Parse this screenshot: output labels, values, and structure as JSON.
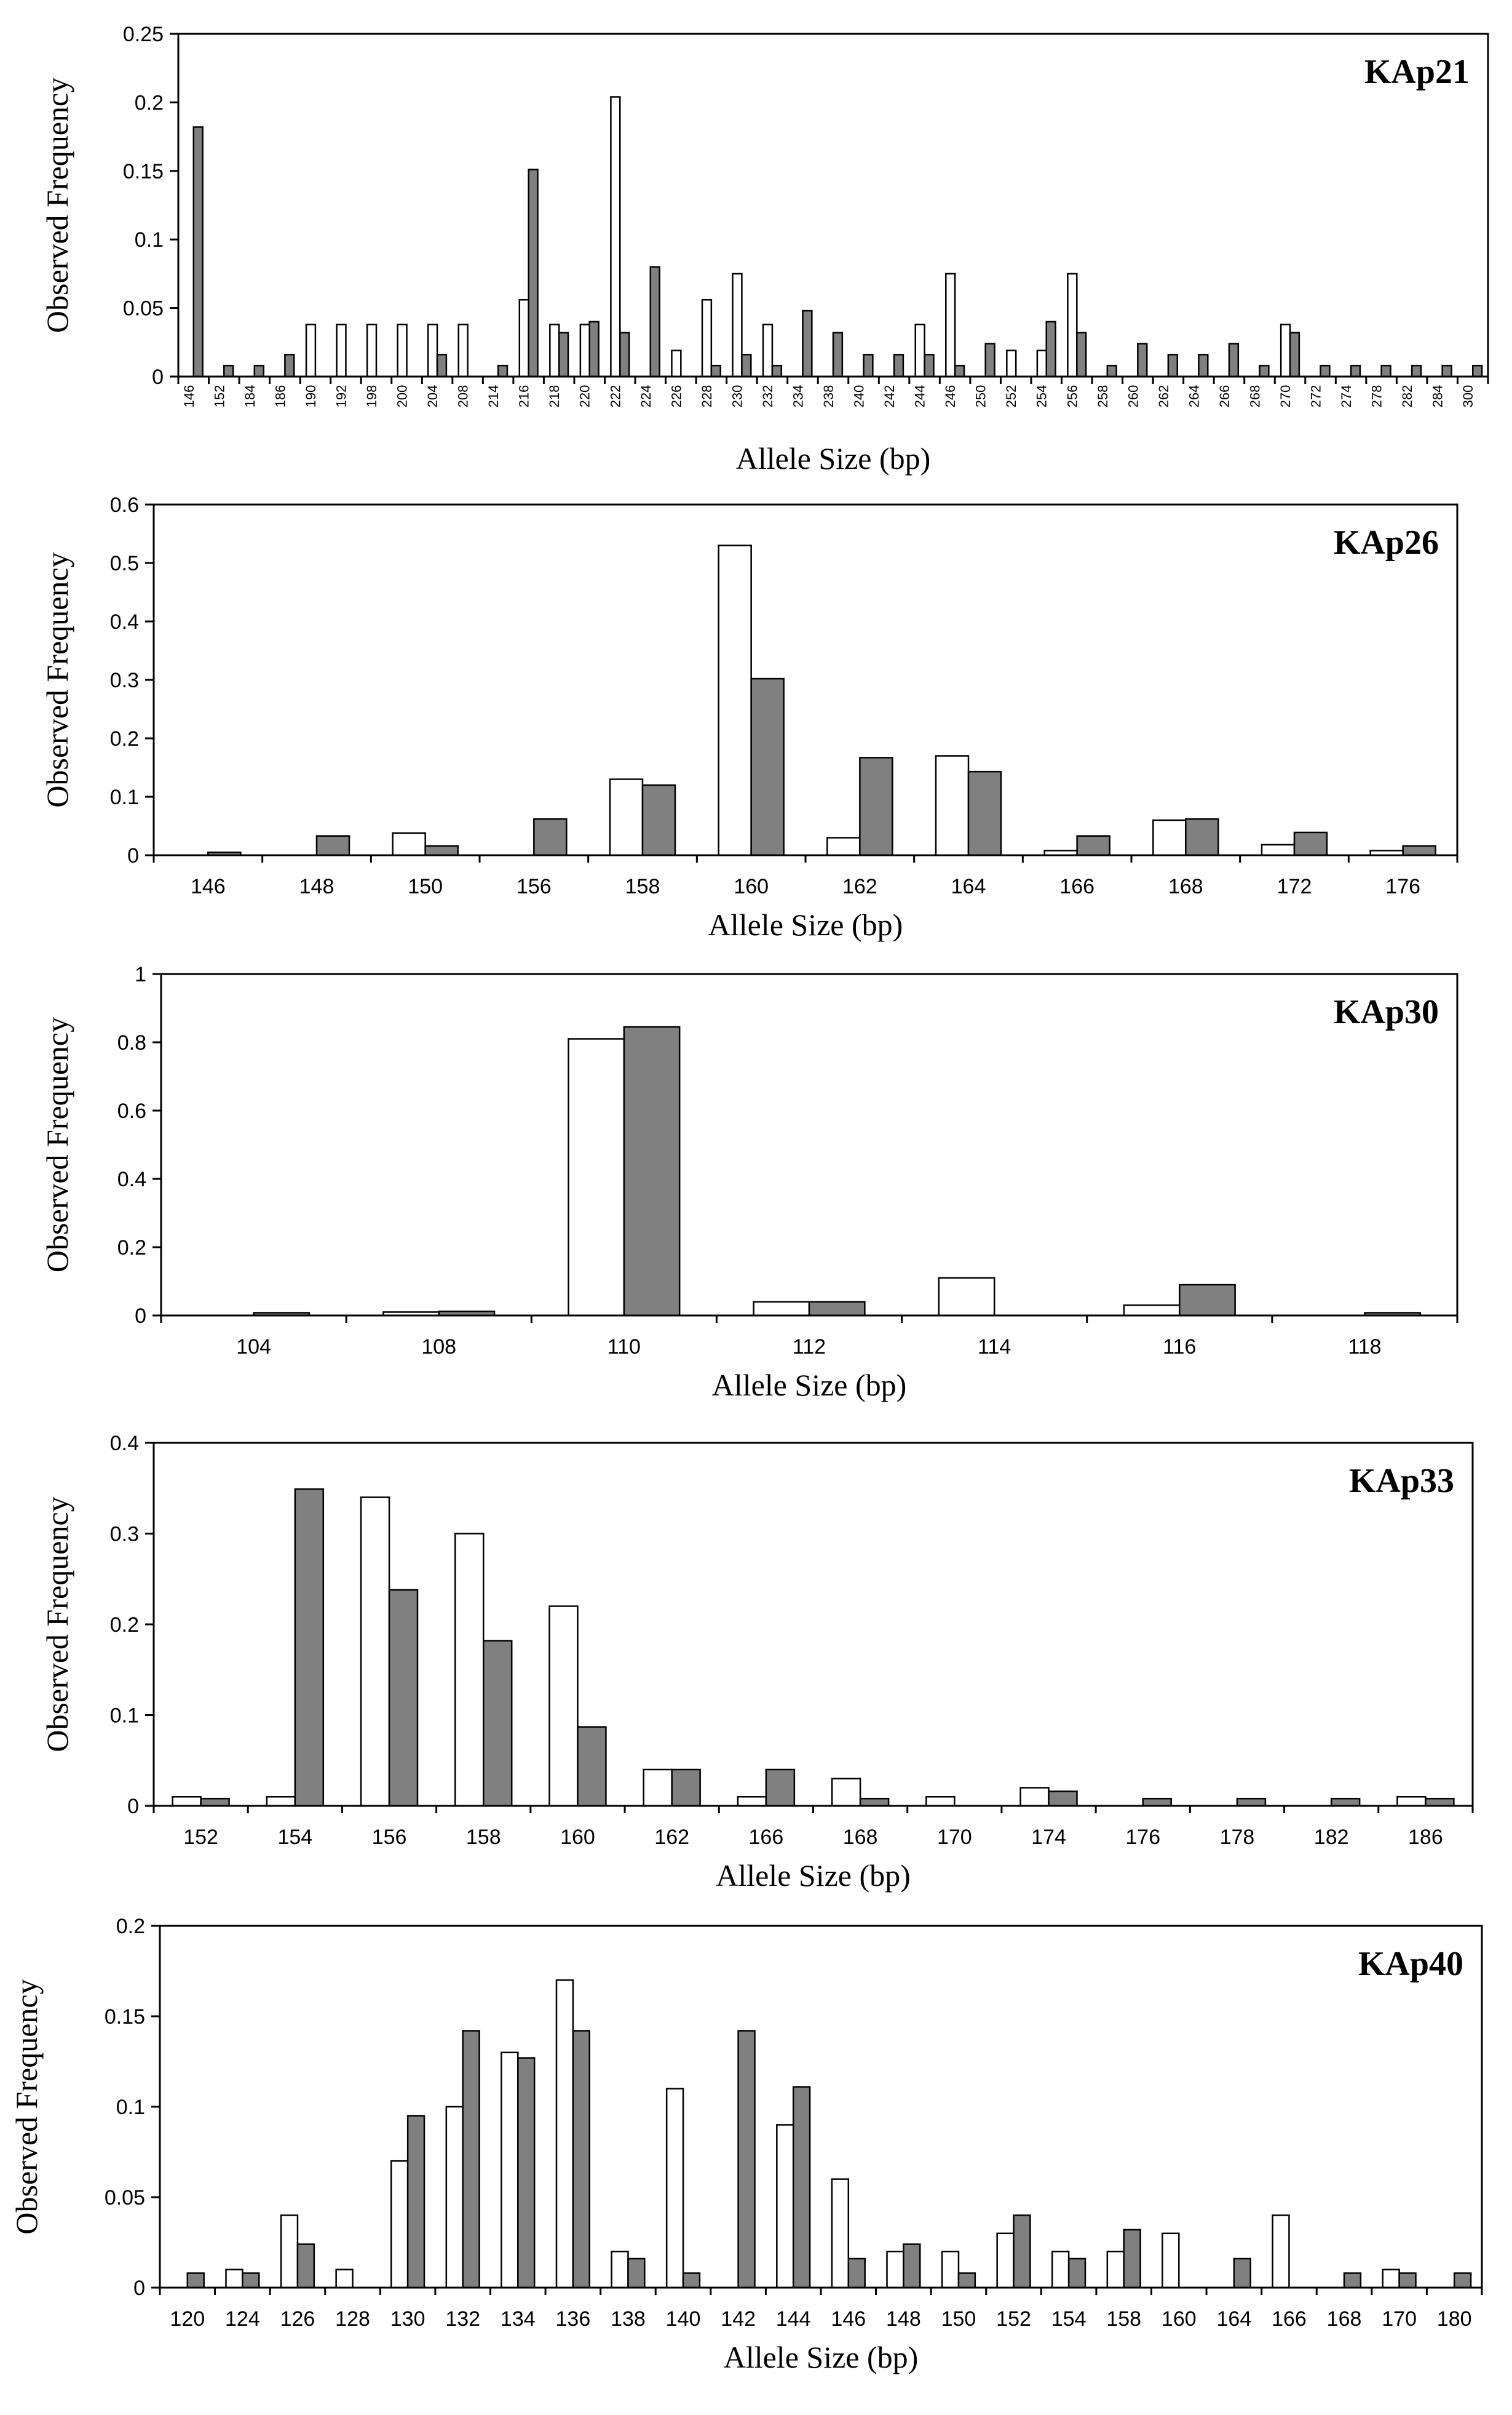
{
  "chart_data": [
    {
      "type": "bar",
      "title": "KAp21",
      "xlabel": "Allele Size (bp)",
      "ylabel": "Observed Frequency",
      "ylim": [
        0,
        0.25
      ],
      "yticks": [
        0,
        0.05,
        0.1,
        0.15,
        0.2,
        0.25
      ],
      "ytick_labels": [
        "0",
        "0.05",
        "0.1",
        "0.15",
        "0.2",
        "0.25"
      ],
      "categories": [
        "146",
        "152",
        "184",
        "186",
        "190",
        "192",
        "198",
        "200",
        "204",
        "208",
        "214",
        "216",
        "218",
        "220",
        "222",
        "224",
        "226",
        "228",
        "230",
        "232",
        "234",
        "238",
        "240",
        "242",
        "244",
        "246",
        "250",
        "252",
        "254",
        "256",
        "258",
        "260",
        "262",
        "264",
        "266",
        "268",
        "270",
        "272",
        "274",
        "278",
        "282",
        "284",
        "300"
      ],
      "series": [
        {
          "name": "white",
          "color": "#ffffff",
          "values": [
            0,
            0,
            0,
            0,
            0.038,
            0.038,
            0.038,
            0.038,
            0.038,
            0.038,
            0,
            0.056,
            0.038,
            0.038,
            0.204,
            0,
            0.019,
            0.056,
            0.075,
            0.038,
            0,
            0,
            0,
            0,
            0.038,
            0.075,
            0,
            0.019,
            0.019,
            0.075,
            0,
            0,
            0,
            0,
            0,
            0,
            0.038,
            0,
            0,
            0,
            0,
            0,
            0
          ]
        },
        {
          "name": "grey",
          "color": "#808080",
          "values": [
            0.182,
            0.008,
            0.008,
            0.016,
            0,
            0,
            0,
            0,
            0.016,
            0,
            0.008,
            0.151,
            0.032,
            0.04,
            0.032,
            0.08,
            0,
            0.008,
            0.016,
            0.008,
            0.048,
            0.032,
            0.016,
            0.016,
            0.016,
            0.008,
            0.024,
            0,
            0.04,
            0.032,
            0.008,
            0.024,
            0.016,
            0.016,
            0.024,
            0.008,
            0.032,
            0.008,
            0.008,
            0.008,
            0.008,
            0.008,
            0.008
          ]
        }
      ]
    },
    {
      "type": "bar",
      "title": "KAp26",
      "xlabel": "Allele Size (bp)",
      "ylabel": "Observed Frequency",
      "ylim": [
        0,
        0.6
      ],
      "yticks": [
        0,
        0.1,
        0.2,
        0.3,
        0.4,
        0.5,
        0.6
      ],
      "ytick_labels": [
        "0",
        "0.1",
        "0.2",
        "0.3",
        "0.4",
        "0.5",
        "0.6"
      ],
      "categories": [
        "146",
        "148",
        "150",
        "156",
        "158",
        "160",
        "162",
        "164",
        "166",
        "168",
        "172",
        "176"
      ],
      "series": [
        {
          "name": "white",
          "color": "#ffffff",
          "values": [
            0,
            0,
            0.038,
            0,
            0.13,
            0.53,
            0.03,
            0.17,
            0.008,
            0.06,
            0.018,
            0.008
          ]
        },
        {
          "name": "grey",
          "color": "#808080",
          "values": [
            0.005,
            0.033,
            0.016,
            0.062,
            0.12,
            0.302,
            0.167,
            0.143,
            0.033,
            0.062,
            0.039,
            0.016
          ]
        }
      ]
    },
    {
      "type": "bar",
      "title": "KAp30",
      "xlabel": "Allele Size (bp)",
      "ylabel": "Observed Frequency",
      "ylim": [
        0,
        1
      ],
      "yticks": [
        0,
        0.2,
        0.4,
        0.6,
        0.8,
        1
      ],
      "ytick_labels": [
        "0",
        "0.2",
        "0.4",
        "0.6",
        "0.8",
        "1"
      ],
      "categories": [
        "104",
        "108",
        "110",
        "112",
        "114",
        "116",
        "118"
      ],
      "series": [
        {
          "name": "white",
          "color": "#ffffff",
          "values": [
            0,
            0.01,
            0.81,
            0.04,
            0.11,
            0.03,
            0
          ]
        },
        {
          "name": "grey",
          "color": "#808080",
          "values": [
            0.008,
            0.012,
            0.845,
            0.04,
            0,
            0.09,
            0.008
          ]
        }
      ]
    },
    {
      "type": "bar",
      "title": "KAp33",
      "xlabel": "Allele Size (bp)",
      "ylabel": "Observed Frequency",
      "ylim": [
        0,
        0.4
      ],
      "yticks": [
        0,
        0.1,
        0.2,
        0.3,
        0.4
      ],
      "ytick_labels": [
        "0",
        "0.1",
        "0.2",
        "0.3",
        "0.4"
      ],
      "categories": [
        "152",
        "154",
        "156",
        "158",
        "160",
        "162",
        "166",
        "168",
        "170",
        "174",
        "176",
        "178",
        "182",
        "186"
      ],
      "series": [
        {
          "name": "white",
          "color": "#ffffff",
          "values": [
            0.01,
            0.01,
            0.34,
            0.3,
            0.22,
            0.04,
            0.01,
            0.03,
            0.01,
            0.02,
            0,
            0,
            0,
            0.01
          ]
        },
        {
          "name": "grey",
          "color": "#808080",
          "values": [
            0.008,
            0.349,
            0.238,
            0.182,
            0.087,
            0.04,
            0.04,
            0.008,
            0,
            0.016,
            0.008,
            0.008,
            0.008,
            0.008
          ]
        }
      ]
    },
    {
      "type": "bar",
      "title": "KAp40",
      "xlabel": "Allele Size (bp)",
      "ylabel": "Observed Frequency",
      "ylim": [
        0,
        0.2
      ],
      "yticks": [
        0,
        0.05,
        0.1,
        0.15,
        0.2
      ],
      "ytick_labels": [
        "0",
        "0.05",
        "0.1",
        "0.15",
        "0.2"
      ],
      "categories": [
        "120",
        "124",
        "126",
        "128",
        "130",
        "132",
        "134",
        "136",
        "138",
        "140",
        "142",
        "144",
        "146",
        "148",
        "150",
        "152",
        "154",
        "158",
        "160",
        "164",
        "166",
        "168",
        "170",
        "180"
      ],
      "series": [
        {
          "name": "white",
          "color": "#ffffff",
          "values": [
            0,
            0.01,
            0.04,
            0.01,
            0.07,
            0.1,
            0.13,
            0.17,
            0.02,
            0.11,
            0,
            0.09,
            0.06,
            0.02,
            0.02,
            0.03,
            0.02,
            0.02,
            0.03,
            0,
            0.04,
            0,
            0.01,
            0
          ]
        },
        {
          "name": "grey",
          "color": "#808080",
          "values": [
            0.008,
            0.008,
            0.024,
            0,
            0.095,
            0.142,
            0.127,
            0.142,
            0.016,
            0.008,
            0.142,
            0.111,
            0.016,
            0.024,
            0.008,
            0.04,
            0.016,
            0.032,
            0,
            0.016,
            0,
            0.008,
            0.008,
            0.008
          ]
        }
      ]
    }
  ]
}
